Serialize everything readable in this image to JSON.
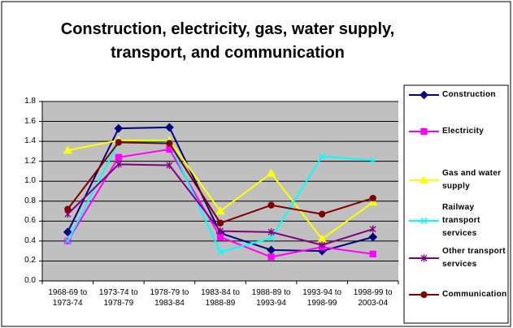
{
  "chart_data": {
    "type": "line",
    "title": "Construction, electricity, gas, water supply, transport, and communication",
    "categories": [
      "1968-69 to 1973-74",
      "1973-74 to 1978-79",
      "1978-79 to 1983-84",
      "1983-84 to 1988-89",
      "1988-89 to 1993-94",
      "1993-94 to 1998-99",
      "1998-99 to 2003-04"
    ],
    "series": [
      {
        "name": "Construction",
        "color": "#000080",
        "marker": "diamond",
        "values": [
          0.49,
          1.53,
          1.54,
          0.48,
          0.31,
          0.3,
          0.44
        ]
      },
      {
        "name": "Electricity",
        "color": "#ff00ff",
        "marker": "square",
        "values": [
          0.4,
          1.24,
          1.32,
          0.44,
          0.24,
          0.34,
          0.27
        ]
      },
      {
        "name": "Gas and water supply",
        "color": "#ffff00",
        "marker": "triangle",
        "values": [
          1.31,
          1.41,
          1.41,
          0.7,
          1.08,
          0.42,
          0.79
        ]
      },
      {
        "name": "Railway transport services",
        "color": "#00ffff",
        "marker": "x",
        "values": [
          0.4,
          1.39,
          1.39,
          0.29,
          0.43,
          1.25,
          1.21
        ]
      },
      {
        "name": "Other transport services",
        "color": "#800080",
        "marker": "asterisk",
        "values": [
          0.67,
          1.17,
          1.16,
          0.5,
          0.49,
          0.36,
          0.52
        ]
      },
      {
        "name": "Communication",
        "color": "#800000",
        "marker": "circle",
        "values": [
          0.72,
          1.39,
          1.38,
          0.58,
          0.76,
          0.67,
          0.83
        ]
      }
    ],
    "ylim": [
      0,
      1.8
    ],
    "yticks": [
      {
        "value": 0,
        "label": "0.0"
      },
      0.2,
      0.4,
      0.6,
      0.8,
      {
        "value": 1,
        "label": "1.0"
      },
      1.2,
      1.4,
      1.6,
      1.8
    ],
    "grid": true,
    "legend": "right"
  }
}
